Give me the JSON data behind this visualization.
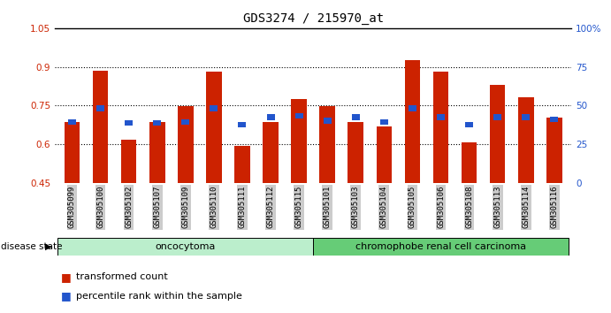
{
  "title": "GDS3274 / 215970_at",
  "samples": [
    "GSM305099",
    "GSM305100",
    "GSM305102",
    "GSM305107",
    "GSM305109",
    "GSM305110",
    "GSM305111",
    "GSM305112",
    "GSM305115",
    "GSM305101",
    "GSM305103",
    "GSM305104",
    "GSM305105",
    "GSM305106",
    "GSM305108",
    "GSM305113",
    "GSM305114",
    "GSM305116"
  ],
  "red_values": [
    0.685,
    0.885,
    0.618,
    0.685,
    0.748,
    0.882,
    0.595,
    0.685,
    0.775,
    0.748,
    0.685,
    0.668,
    0.925,
    0.882,
    0.608,
    0.83,
    0.782,
    0.705
  ],
  "blue_values": [
    0.675,
    0.728,
    0.672,
    0.672,
    0.675,
    0.728,
    0.665,
    0.695,
    0.7,
    0.68,
    0.695,
    0.675,
    0.728,
    0.695,
    0.665,
    0.695,
    0.695,
    0.685
  ],
  "ylim_left": [
    0.45,
    1.05
  ],
  "ylim_right": [
    0,
    100
  ],
  "yticks_left": [
    0.45,
    0.6,
    0.75,
    0.9,
    1.05
  ],
  "yticks_right": [
    0,
    25,
    50,
    75,
    100
  ],
  "ytick_labels_left": [
    "0.45",
    "0.6",
    "0.75",
    "0.9",
    "1.05"
  ],
  "ytick_labels_right": [
    "0",
    "25",
    "50",
    "75",
    "100%"
  ],
  "bar_color_red": "#CC2200",
  "bar_color_blue": "#2255CC",
  "bar_width": 0.55,
  "blue_bar_width": 0.28,
  "blue_bar_height": 0.022,
  "oncocytoma_count": 9,
  "chrom_count": 9,
  "oncocytoma_label": "oncocytoma",
  "chrom_label": "chromophobe renal cell carcinoma",
  "disease_state_label": "disease state",
  "legend_red": "transformed count",
  "legend_blue": "percentile rank within the sample",
  "onco_color_light": "#CCEECC",
  "onco_color_dark": "#66CC77",
  "chrom_color_dark": "#55BB66",
  "tick_bg_color": "#CCCCCC",
  "ylabel_left_color": "#CC2200",
  "ylabel_right_color": "#2255CC",
  "baseline": 0.45
}
